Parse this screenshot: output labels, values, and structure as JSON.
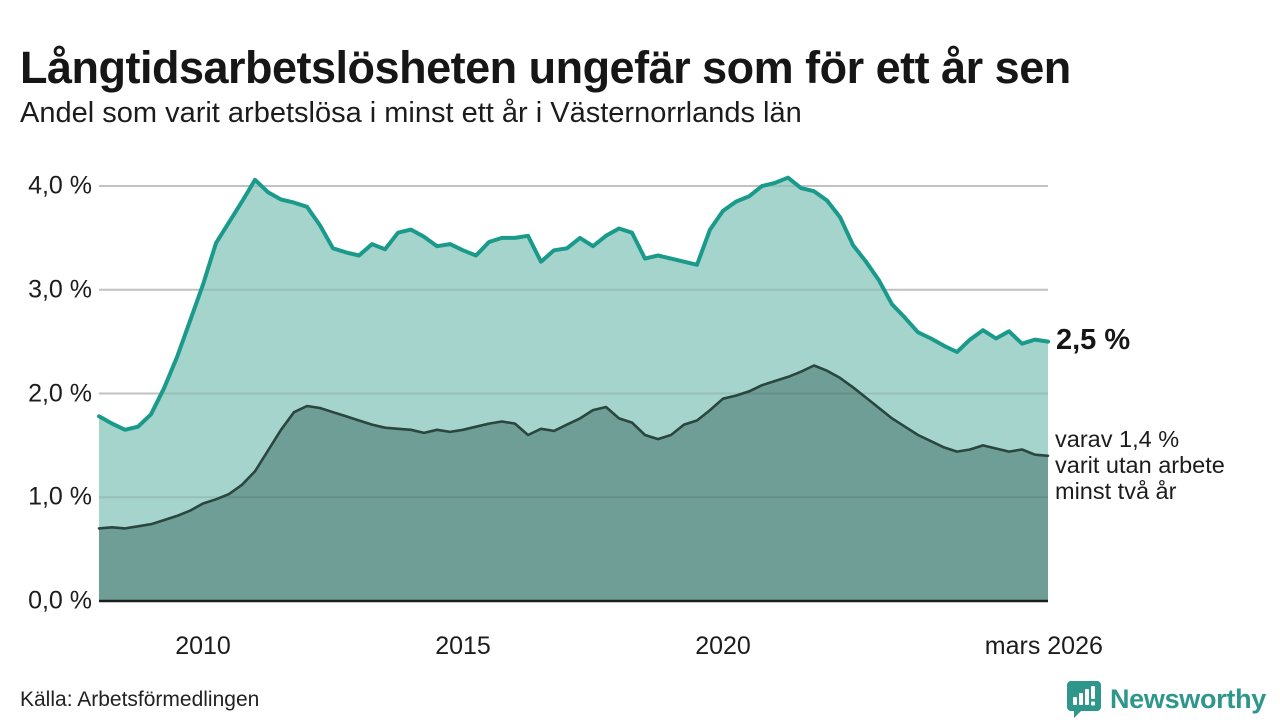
{
  "header": {
    "title": "Långtidsarbetslösheten ungefär som för ett år sen",
    "subtitle": "Andel som varit arbetslösa i minst ett år i Västernorrlands län"
  },
  "annotations": {
    "end_value": "2,5 %",
    "note": "varav 1,4 %\nvarit utan arbete\nminst två år"
  },
  "footer": {
    "source": "Källa: Arbetsförmedlingen",
    "logo_text": "Newsworthy"
  },
  "chart_data": {
    "type": "area",
    "title": "Långtidsarbetslösheten ungefär som för ett år sen",
    "subtitle": "Andel som varit arbetslösa i minst ett år i Västernorrlands län",
    "xlabel": "",
    "ylabel": "",
    "ylim": [
      0,
      4.3
    ],
    "xlim": [
      2008,
      2026.25
    ],
    "grid": "horizontal",
    "legend_position": "none",
    "y_axis": {
      "ticks": [
        {
          "label": "4,0 %",
          "value": 4
        },
        {
          "label": "3,0 %",
          "value": 3
        },
        {
          "label": "2,0 %",
          "value": 2
        },
        {
          "label": "1,0 %",
          "value": 1
        },
        {
          "label": "0,0 %",
          "value": 0
        }
      ]
    },
    "x_axis": {
      "ticks": [
        {
          "label": "2010",
          "value": 2010
        },
        {
          "label": "2015",
          "value": 2015
        },
        {
          "label": "2020",
          "value": 2020
        },
        {
          "label": "mars 2026",
          "value": 2026.17
        }
      ]
    },
    "x": [
      2008,
      2008.25,
      2008.5,
      2008.75,
      2009,
      2009.25,
      2009.5,
      2009.75,
      2010,
      2010.25,
      2010.5,
      2010.75,
      2011,
      2011.25,
      2011.5,
      2011.75,
      2012,
      2012.25,
      2012.5,
      2012.75,
      2013,
      2013.25,
      2013.5,
      2013.75,
      2014,
      2014.25,
      2014.5,
      2014.75,
      2015,
      2015.25,
      2015.5,
      2015.75,
      2016,
      2016.25,
      2016.5,
      2016.75,
      2017,
      2017.25,
      2017.5,
      2017.75,
      2018,
      2018.25,
      2018.5,
      2018.75,
      2019,
      2019.25,
      2019.5,
      2019.75,
      2020,
      2020.25,
      2020.5,
      2020.75,
      2021,
      2021.25,
      2021.5,
      2021.75,
      2022,
      2022.25,
      2022.5,
      2022.75,
      2023,
      2023.25,
      2023.5,
      2023.75,
      2024,
      2024.25,
      2024.5,
      2024.75,
      2025,
      2025.25,
      2025.5,
      2025.75,
      2026,
      2026.25
    ],
    "series": [
      {
        "name": "Arbetslösa minst ett år",
        "end_label": "2,5 %",
        "values": [
          1.78,
          1.71,
          1.65,
          1.68,
          1.8,
          2.05,
          2.35,
          2.7,
          3.05,
          3.45,
          3.65,
          3.85,
          4.06,
          3.94,
          3.87,
          3.84,
          3.8,
          3.62,
          3.4,
          3.36,
          3.33,
          3.44,
          3.39,
          3.55,
          3.58,
          3.51,
          3.42,
          3.44,
          3.38,
          3.33,
          3.46,
          3.5,
          3.5,
          3.52,
          3.27,
          3.38,
          3.4,
          3.5,
          3.42,
          3.52,
          3.59,
          3.55,
          3.3,
          3.33,
          3.3,
          3.27,
          3.24,
          3.58,
          3.76,
          3.85,
          3.9,
          4.0,
          4.03,
          4.08,
          3.98,
          3.95,
          3.86,
          3.7,
          3.43,
          3.27,
          3.09,
          2.86,
          2.73,
          2.59,
          2.53,
          2.46,
          2.4,
          2.52,
          2.61,
          2.53,
          2.6,
          2.48,
          2.52,
          2.5
        ]
      },
      {
        "name": "Arbetslösa minst två år",
        "end_label": "varav 1,4 % varit utan arbete minst två år",
        "values": [
          0.7,
          0.71,
          0.7,
          0.72,
          0.74,
          0.78,
          0.82,
          0.87,
          0.94,
          0.98,
          1.03,
          1.12,
          1.25,
          1.45,
          1.65,
          1.82,
          1.88,
          1.86,
          1.82,
          1.78,
          1.74,
          1.7,
          1.67,
          1.66,
          1.65,
          1.62,
          1.65,
          1.63,
          1.65,
          1.68,
          1.71,
          1.73,
          1.71,
          1.6,
          1.66,
          1.64,
          1.7,
          1.76,
          1.84,
          1.87,
          1.76,
          1.72,
          1.6,
          1.56,
          1.6,
          1.7,
          1.74,
          1.84,
          1.95,
          1.98,
          2.02,
          2.08,
          2.12,
          2.16,
          2.21,
          2.27,
          2.22,
          2.15,
          2.06,
          1.96,
          1.86,
          1.76,
          1.68,
          1.6,
          1.54,
          1.48,
          1.44,
          1.46,
          1.5,
          1.47,
          1.44,
          1.46,
          1.41,
          1.4
        ]
      }
    ],
    "colors": {
      "line_one_year": "#1a9a8b",
      "fill_one_year": "#a5d4cc",
      "line_two_year": "#2a463f",
      "fill_two_year": "#6f9e97",
      "gridline": "#d6d6d6",
      "baseline": "#1d1d1d",
      "logo_teal": "#2e968b"
    }
  }
}
